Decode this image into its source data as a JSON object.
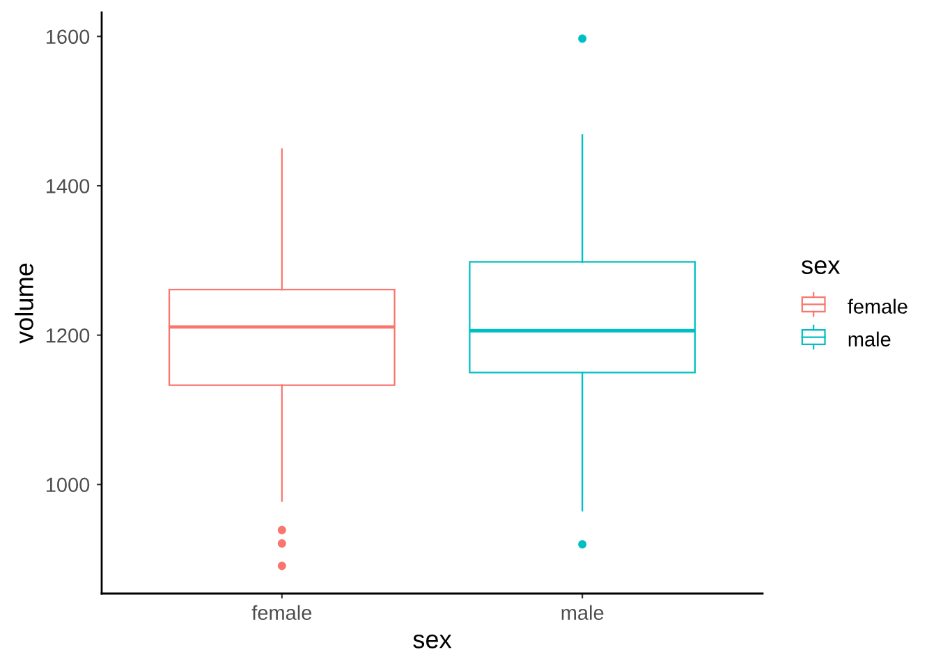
{
  "chart_data": {
    "type": "box",
    "xlabel": "sex",
    "ylabel": "volume",
    "legend_title": "sex",
    "legend": "right",
    "categories": [
      "female",
      "male"
    ],
    "series": [
      {
        "name": "female",
        "color": "#f8766d",
        "boxes": [
          {
            "low": 978,
            "q1": 1133,
            "median": 1211,
            "q3": 1261,
            "high": 1449,
            "outliers": [
              939,
              921,
              891
            ]
          },
          null
        ]
      },
      {
        "name": "male",
        "color": "#00bfc4",
        "boxes": [
          null,
          {
            "low": 965,
            "q1": 1150,
            "median": 1206,
            "q3": 1298,
            "high": 1468,
            "outliers": [
              1597,
              920
            ]
          }
        ]
      }
    ],
    "ylim": [
      854,
      1632
    ],
    "yticks": [
      1000,
      1200,
      1400,
      1600
    ]
  }
}
